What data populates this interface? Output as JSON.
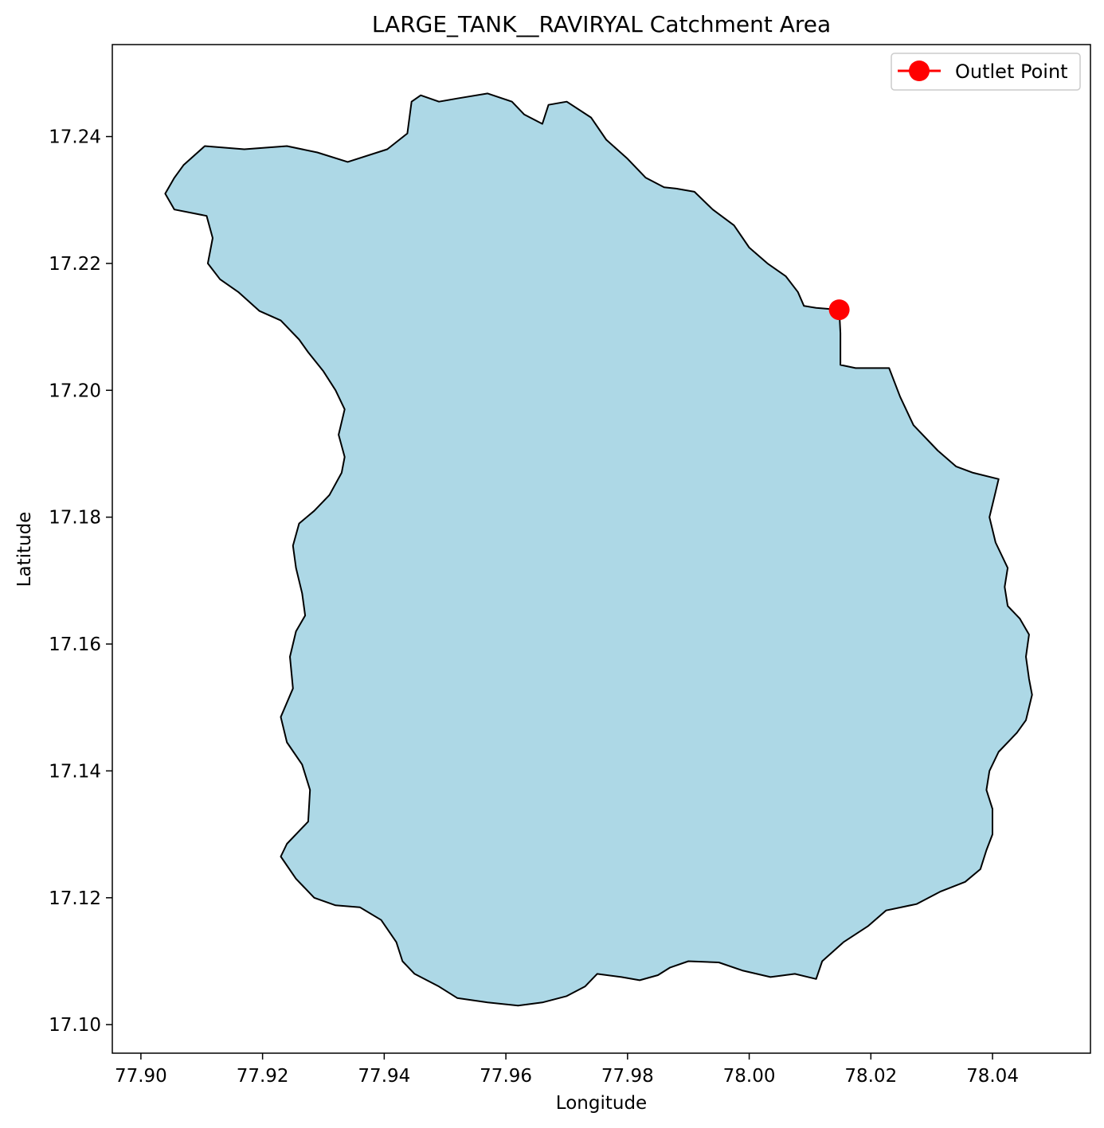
{
  "chart_data": {
    "type": "map",
    "title": "LARGE_TANK__RAVIRYAL Catchment Area",
    "xlabel": "Longitude",
    "ylabel": "Latitude",
    "xlim": [
      77.8953,
      78.0561
    ],
    "ylim": [
      17.0955,
      17.2545
    ],
    "x_ticks": [
      77.9,
      77.92,
      77.94,
      77.96,
      77.98,
      78.0,
      78.02,
      78.04
    ],
    "x_tick_labels": [
      "77.90",
      "77.92",
      "77.94",
      "77.96",
      "77.98",
      "78.00",
      "78.02",
      "78.04"
    ],
    "y_ticks": [
      17.1,
      17.12,
      17.14,
      17.16,
      17.18,
      17.2,
      17.22,
      17.24
    ],
    "y_tick_labels": [
      "17.10",
      "17.12",
      "17.14",
      "17.16",
      "17.18",
      "17.20",
      "17.22",
      "17.24"
    ],
    "grid": false,
    "legend": {
      "placement": "top-right",
      "entries": [
        {
          "label": "Outlet Point",
          "color": "#ff0000",
          "marker": "circle"
        }
      ]
    },
    "outlet_point": {
      "lon": 78.0148,
      "lat": 17.2127,
      "color": "#ff0000"
    },
    "catchment": {
      "fill": "#add8e6",
      "edge": "#000000",
      "boundary": [
        [
          77.907,
          17.2355
        ],
        [
          77.9105,
          17.2385
        ],
        [
          77.917,
          17.238
        ],
        [
          77.924,
          17.2385
        ],
        [
          77.929,
          17.2375
        ],
        [
          77.934,
          17.236
        ],
        [
          77.9405,
          17.238
        ],
        [
          77.9438,
          17.2405
        ],
        [
          77.9445,
          17.2455
        ],
        [
          77.946,
          17.2465
        ],
        [
          77.949,
          17.2455
        ],
        [
          77.952,
          17.246
        ],
        [
          77.957,
          17.2468
        ],
        [
          77.961,
          17.2455
        ],
        [
          77.963,
          17.2435
        ],
        [
          77.966,
          17.242
        ],
        [
          77.967,
          17.245
        ],
        [
          77.97,
          17.2455
        ],
        [
          77.974,
          17.243
        ],
        [
          77.9765,
          17.2395
        ],
        [
          77.98,
          17.2365
        ],
        [
          77.983,
          17.2335
        ],
        [
          77.986,
          17.232
        ],
        [
          77.988,
          17.2318
        ],
        [
          77.991,
          17.2313
        ],
        [
          77.994,
          17.2285
        ],
        [
          77.9975,
          17.226
        ],
        [
          78.0,
          17.2225
        ],
        [
          78.003,
          17.22
        ],
        [
          78.006,
          17.218
        ],
        [
          78.008,
          17.2155
        ],
        [
          78.009,
          17.2133
        ],
        [
          78.011,
          17.213
        ],
        [
          78.0148,
          17.2127
        ],
        [
          78.015,
          17.209
        ],
        [
          78.015,
          17.204
        ],
        [
          78.0175,
          17.2035
        ],
        [
          78.023,
          17.2035
        ],
        [
          78.0248,
          17.199
        ],
        [
          78.027,
          17.1945
        ],
        [
          78.031,
          17.1905
        ],
        [
          78.034,
          17.188
        ],
        [
          78.0368,
          17.187
        ],
        [
          78.041,
          17.186
        ],
        [
          78.0405,
          17.184
        ],
        [
          78.0395,
          17.18
        ],
        [
          78.0405,
          17.176
        ],
        [
          78.0425,
          17.172
        ],
        [
          78.042,
          17.169
        ],
        [
          78.0425,
          17.166
        ],
        [
          78.0445,
          17.164
        ],
        [
          78.046,
          17.1615
        ],
        [
          78.0455,
          17.158
        ],
        [
          78.046,
          17.1545
        ],
        [
          78.0465,
          17.152
        ],
        [
          78.0455,
          17.148
        ],
        [
          78.044,
          17.146
        ],
        [
          78.041,
          17.143
        ],
        [
          78.0395,
          17.14
        ],
        [
          78.039,
          17.137
        ],
        [
          78.04,
          17.134
        ],
        [
          78.04,
          17.13
        ],
        [
          78.039,
          17.1275
        ],
        [
          78.038,
          17.1245
        ],
        [
          78.0355,
          17.1225
        ],
        [
          78.0315,
          17.121
        ],
        [
          78.0275,
          17.119
        ],
        [
          78.0225,
          17.118
        ],
        [
          78.0195,
          17.1155
        ],
        [
          78.0155,
          17.113
        ],
        [
          78.012,
          17.11
        ],
        [
          78.011,
          17.1072
        ],
        [
          78.0075,
          17.108
        ],
        [
          78.0035,
          17.1075
        ],
        [
          77.999,
          17.1085
        ],
        [
          77.995,
          17.1098
        ],
        [
          77.99,
          17.11
        ],
        [
          77.987,
          17.109
        ],
        [
          77.985,
          17.1078
        ],
        [
          77.982,
          17.107
        ],
        [
          77.979,
          17.1075
        ],
        [
          77.975,
          17.108
        ],
        [
          77.973,
          17.106
        ],
        [
          77.97,
          17.1045
        ],
        [
          77.966,
          17.1035
        ],
        [
          77.962,
          17.103
        ],
        [
          77.957,
          17.1035
        ],
        [
          77.952,
          17.1042
        ],
        [
          77.949,
          17.106
        ],
        [
          77.945,
          17.108
        ],
        [
          77.943,
          17.11
        ],
        [
          77.942,
          17.113
        ],
        [
          77.9395,
          17.1165
        ],
        [
          77.936,
          17.1185
        ],
        [
          77.932,
          17.1188
        ],
        [
          77.9285,
          17.12
        ],
        [
          77.9255,
          17.123
        ],
        [
          77.923,
          17.1265
        ],
        [
          77.924,
          17.1285
        ],
        [
          77.9275,
          17.132
        ],
        [
          77.9278,
          17.137
        ],
        [
          77.9265,
          17.141
        ],
        [
          77.924,
          17.1445
        ],
        [
          77.923,
          17.1485
        ],
        [
          77.925,
          17.153
        ],
        [
          77.9245,
          17.158
        ],
        [
          77.9255,
          17.162
        ],
        [
          77.927,
          17.1645
        ],
        [
          77.9265,
          17.168
        ],
        [
          77.9255,
          17.172
        ],
        [
          77.925,
          17.1755
        ],
        [
          77.926,
          17.179
        ],
        [
          77.9285,
          17.181
        ],
        [
          77.931,
          17.1835
        ],
        [
          77.933,
          17.187
        ],
        [
          77.9335,
          17.1895
        ],
        [
          77.9325,
          17.193
        ],
        [
          77.9335,
          17.197
        ],
        [
          77.932,
          17.2
        ],
        [
          77.93,
          17.203
        ],
        [
          77.9275,
          17.206
        ],
        [
          77.926,
          17.208
        ],
        [
          77.923,
          17.211
        ],
        [
          77.9195,
          17.2125
        ],
        [
          77.916,
          17.2155
        ],
        [
          77.913,
          17.2175
        ],
        [
          77.911,
          17.22
        ],
        [
          77.9118,
          17.224
        ],
        [
          77.9108,
          17.2275
        ],
        [
          77.9055,
          17.2285
        ],
        [
          77.904,
          17.231
        ],
        [
          77.9055,
          17.2335
        ]
      ]
    }
  }
}
